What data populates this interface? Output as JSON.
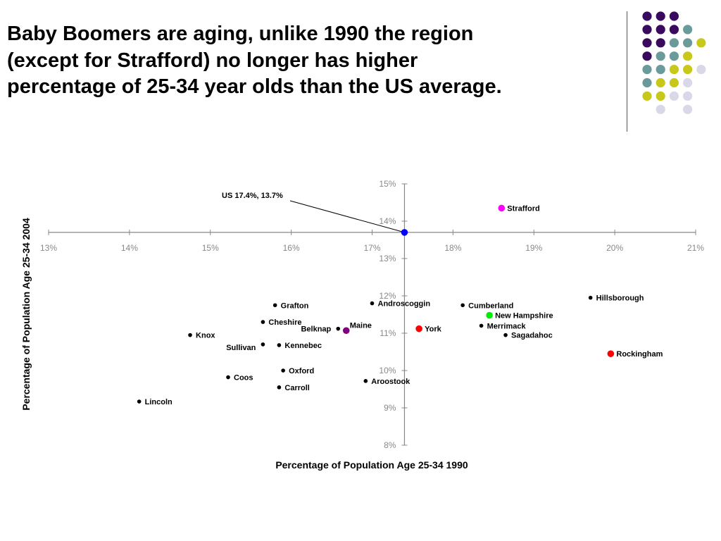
{
  "slide": {
    "title_lines": [
      "Baby Boomers are aging, unlike 1990 the region",
      "(except for Strafford) no longer has higher",
      "percentage of 25-34 year olds than the US average."
    ]
  },
  "decoration": {
    "colors": {
      "purple": "#3a0a5e",
      "teal": "#6a9a9a",
      "olive": "#c8c81a",
      "lavender": "#d8d8e8"
    },
    "dot_rows": [
      [
        "purple",
        "purple",
        "purple",
        "",
        ""
      ],
      [
        "purple",
        "purple",
        "purple",
        "teal",
        ""
      ],
      [
        "purple",
        "purple",
        "teal",
        "teal",
        "olive"
      ],
      [
        "purple",
        "teal",
        "teal",
        "olive",
        ""
      ],
      [
        "teal",
        "teal",
        "olive",
        "olive",
        "lavender"
      ],
      [
        "teal",
        "olive",
        "olive",
        "lavender",
        ""
      ],
      [
        "olive",
        "olive",
        "lavender",
        "lavender",
        ""
      ],
      [
        "",
        "lavender",
        "",
        "lavender",
        ""
      ]
    ]
  },
  "chart_data": {
    "type": "scatter",
    "title": "",
    "xlabel": "Percentage of Population Age 25-34 1990",
    "ylabel": "Percentage of Population Age 25-34 2004",
    "xlim": [
      13,
      21
    ],
    "ylim": [
      8,
      15
    ],
    "x_ticks": [
      13,
      14,
      15,
      16,
      17,
      18,
      19,
      20,
      21
    ],
    "y_ticks": [
      8,
      9,
      10,
      11,
      12,
      13,
      14,
      15
    ],
    "tick_suffix": "%",
    "axes_cross_at": {
      "x": 17.4,
      "y": 13.7
    },
    "grid": false,
    "annotation": {
      "text": "US 17.4%, 13.7%",
      "x": 17.4,
      "y": 13.7
    },
    "points": [
      {
        "label": "US",
        "x": 17.4,
        "y": 13.7,
        "color": "#0000ff",
        "size": "large",
        "show_label": false
      },
      {
        "label": "Strafford",
        "x": 18.6,
        "y": 14.35,
        "color": "#ff00ff",
        "size": "large",
        "label_side": "right"
      },
      {
        "label": "Hillsborough",
        "x": 19.7,
        "y": 11.95,
        "color": "#000000",
        "size": "small",
        "label_side": "right"
      },
      {
        "label": "Rockingham",
        "x": 19.95,
        "y": 10.45,
        "color": "#ff0000",
        "size": "large",
        "label_side": "right"
      },
      {
        "label": "Cumberland",
        "x": 18.12,
        "y": 11.75,
        "color": "#000000",
        "size": "small",
        "label_side": "right"
      },
      {
        "label": "New Hampshire",
        "x": 18.45,
        "y": 11.48,
        "color": "#00ee00",
        "size": "large",
        "label_side": "right"
      },
      {
        "label": "Merrimack",
        "x": 18.35,
        "y": 11.2,
        "color": "#000000",
        "size": "small",
        "label_side": "right"
      },
      {
        "label": "Sagadahoc",
        "x": 18.65,
        "y": 10.95,
        "color": "#000000",
        "size": "small",
        "label_side": "right"
      },
      {
        "label": "York",
        "x": 17.58,
        "y": 11.12,
        "color": "#ff0000",
        "size": "large",
        "label_side": "right"
      },
      {
        "label": "Androscoggin",
        "x": 17.0,
        "y": 11.8,
        "color": "#000000",
        "size": "small",
        "label_side": "right"
      },
      {
        "label": "Maine",
        "x": 16.68,
        "y": 11.07,
        "color": "#800080",
        "size": "large",
        "label_side": "right-up"
      },
      {
        "label": "Belknap",
        "x": 16.58,
        "y": 11.12,
        "color": "#000000",
        "size": "small",
        "label_side": "left"
      },
      {
        "label": "Grafton",
        "x": 15.8,
        "y": 11.75,
        "color": "#000000",
        "size": "small",
        "label_side": "right"
      },
      {
        "label": "Cheshire",
        "x": 15.65,
        "y": 11.3,
        "color": "#000000",
        "size": "small",
        "label_side": "right"
      },
      {
        "label": "Knox",
        "x": 14.75,
        "y": 10.95,
        "color": "#000000",
        "size": "small",
        "label_side": "right"
      },
      {
        "label": "Kennebec",
        "x": 15.85,
        "y": 10.68,
        "color": "#000000",
        "size": "small",
        "label_side": "right"
      },
      {
        "label": "Sullivan",
        "x": 15.65,
        "y": 10.7,
        "color": "#000000",
        "size": "small",
        "label_side": "left-down"
      },
      {
        "label": "Oxford",
        "x": 15.9,
        "y": 10.0,
        "color": "#000000",
        "size": "small",
        "label_side": "right"
      },
      {
        "label": "Coos",
        "x": 15.22,
        "y": 9.82,
        "color": "#000000",
        "size": "small",
        "label_side": "right"
      },
      {
        "label": "Aroostook",
        "x": 16.92,
        "y": 9.72,
        "color": "#000000",
        "size": "small",
        "label_side": "right"
      },
      {
        "label": "Carroll",
        "x": 15.85,
        "y": 9.55,
        "color": "#000000",
        "size": "small",
        "label_side": "right"
      },
      {
        "label": "Lincoln",
        "x": 14.12,
        "y": 9.17,
        "color": "#000000",
        "size": "small",
        "label_side": "right"
      }
    ]
  }
}
